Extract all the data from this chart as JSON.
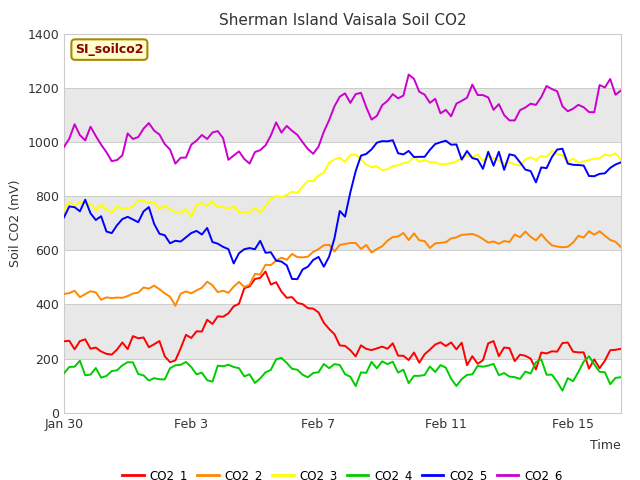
{
  "title": "Sherman Island Vaisala Soil CO2",
  "ylabel": "Soil CO2 (mV)",
  "xlabel": "Time",
  "watermark": "SI_soilco2",
  "legend_labels": [
    "CO2_1",
    "CO2_2",
    "CO2_3",
    "CO2_4",
    "CO2_5",
    "CO2_6"
  ],
  "colors": [
    "#ff0000",
    "#ff8800",
    "#ffff00",
    "#00cc00",
    "#0000ff",
    "#cc00cc"
  ],
  "ylim": [
    0,
    1400
  ],
  "plot_bg": "#ffffff",
  "band_color": "#e8e8e8",
  "x_tick_labels": [
    "Jan 30",
    "Feb 3",
    "Feb 7",
    "Feb 11",
    "Feb 15"
  ],
  "x_tick_positions": [
    0,
    4,
    8,
    12,
    16
  ],
  "total_days": 17.5,
  "yticks": [
    0,
    200,
    400,
    600,
    800,
    1000,
    1200,
    1400
  ]
}
